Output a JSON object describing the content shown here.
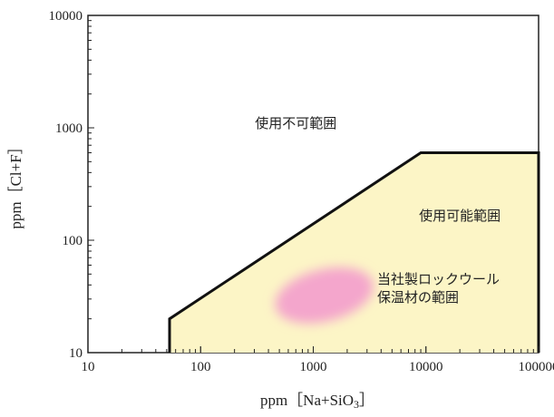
{
  "chart_data": {
    "type": "area",
    "xlabel": "ppm［Na+SiO",
    "xlabel_subscript": "3",
    "xlabel_suffix": "］",
    "ylabel": "ppm［Cl+F］",
    "xscale": "log",
    "yscale": "log",
    "xlim": [
      10,
      100000
    ],
    "ylim": [
      10,
      10000
    ],
    "x_ticks": [
      "10",
      "100",
      "1000",
      "10000",
      "100000"
    ],
    "y_ticks": [
      "10",
      "100",
      "1000",
      "10000"
    ],
    "usable_region": {
      "name": "使用可能範囲",
      "color": "#fcf5c6",
      "boundary": [
        {
          "x": 53,
          "y": 10
        },
        {
          "x": 53,
          "y": 20
        },
        {
          "x": 9000,
          "y": 600
        },
        {
          "x": 100000,
          "y": 600
        },
        {
          "x": 100000,
          "y": 10
        }
      ]
    },
    "company_range": {
      "name": "当社製ロックウール保温材の範囲",
      "color": "#f4a6cc",
      "center": {
        "x": 1050,
        "y": 30
      },
      "x_extent": [
        450,
        3500
      ],
      "y_extent": [
        19,
        55
      ]
    },
    "annotations": [
      {
        "text": "使用不可範囲",
        "x": 700,
        "y": 1000
      },
      {
        "text": "使用可能範囲",
        "x": 20000,
        "y": 150
      }
    ],
    "company_label_lines": [
      "当社製ロックウール",
      "保温材の範囲"
    ],
    "grid": false
  },
  "colors": {
    "usable_fill": "#fcf5c6",
    "boundary_line": "#111111",
    "blob": "#f4a6cc"
  }
}
